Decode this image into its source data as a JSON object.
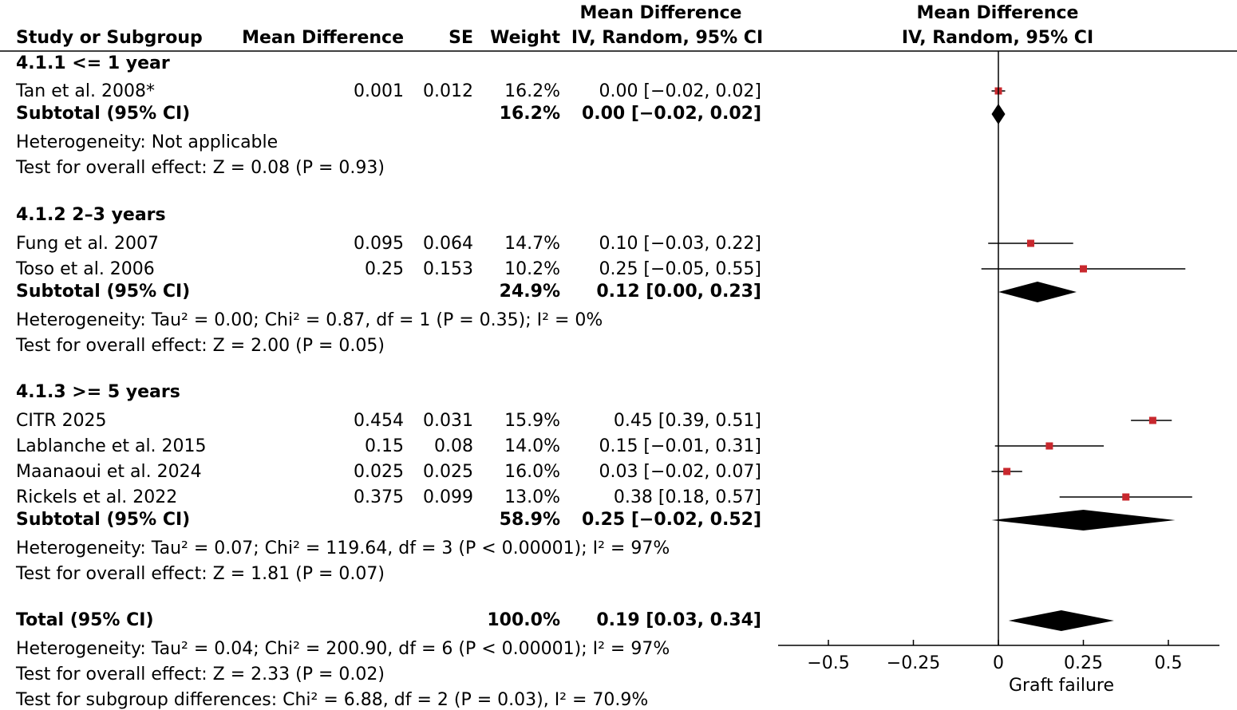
{
  "header": {
    "study": "Study or Subgroup",
    "md": "Mean Difference",
    "se": "SE",
    "weight": "Weight",
    "ci_title": "Mean Difference",
    "ci_sub": "IV, Random, 95% CI",
    "plot_title": "Mean Difference",
    "plot_sub": "IV, Random, 95% CI"
  },
  "groups": [
    {
      "title": "4.1.1 <= 1 year",
      "studies": [
        {
          "name": "Tan et al. 2008*",
          "md": "0.001",
          "se": "0.012",
          "weight": "16.2%",
          "ci": "0.00 [−0.02, 0.02]",
          "est": 0.0,
          "lo": -0.02,
          "hi": 0.02
        }
      ],
      "subtotal": {
        "label": "Subtotal (95% CI)",
        "weight": "16.2%",
        "ci": "0.00 [−0.02, 0.02]",
        "est": 0.0,
        "lo": -0.02,
        "hi": 0.02
      },
      "heterogeneity": "Heterogeneity: Not applicable",
      "overall": "Test for overall effect: Z = 0.08 (P = 0.93)"
    },
    {
      "title": "4.1.2 2–3 years",
      "studies": [
        {
          "name": "Fung et al. 2007",
          "md": "0.095",
          "se": "0.064",
          "weight": "14.7%",
          "ci": "0.10 [−0.03, 0.22]",
          "est": 0.095,
          "lo": -0.03,
          "hi": 0.22
        },
        {
          "name": "Toso et al. 2006",
          "md": "0.25",
          "se": "0.153",
          "weight": "10.2%",
          "ci": "0.25 [−0.05, 0.55]",
          "est": 0.25,
          "lo": -0.05,
          "hi": 0.55
        }
      ],
      "subtotal": {
        "label": "Subtotal (95% CI)",
        "weight": "24.9%",
        "ci": "0.12 [0.00, 0.23]",
        "est": 0.115,
        "lo": 0.0,
        "hi": 0.23
      },
      "heterogeneity": "Heterogeneity: Tau² = 0.00; Chi² = 0.87, df = 1 (P = 0.35); I² = 0%",
      "overall": "Test for overall effect: Z = 2.00 (P = 0.05)"
    },
    {
      "title": "4.1.3 >= 5 years",
      "studies": [
        {
          "name": "CITR 2025",
          "md": "0.454",
          "se": "0.031",
          "weight": "15.9%",
          "ci": "0.45 [0.39, 0.51]",
          "est": 0.454,
          "lo": 0.39,
          "hi": 0.51
        },
        {
          "name": "Lablanche et al. 2015",
          "md": "0.15",
          "se": "0.08",
          "weight": "14.0%",
          "ci": "0.15 [−0.01, 0.31]",
          "est": 0.15,
          "lo": -0.01,
          "hi": 0.31
        },
        {
          "name": "Maanaoui et al. 2024",
          "md": "0.025",
          "se": "0.025",
          "weight": "16.0%",
          "ci": "0.03 [−0.02, 0.07]",
          "est": 0.025,
          "lo": -0.02,
          "hi": 0.07
        },
        {
          "name": "Rickels et al. 2022",
          "md": "0.375",
          "se": "0.099",
          "weight": "13.0%",
          "ci": "0.38 [0.18, 0.57]",
          "est": 0.375,
          "lo": 0.18,
          "hi": 0.57
        }
      ],
      "subtotal": {
        "label": "Subtotal (95% CI)",
        "weight": "58.9%",
        "ci": "0.25 [−0.02, 0.52]",
        "est": 0.25,
        "lo": -0.02,
        "hi": 0.52
      },
      "heterogeneity": "Heterogeneity: Tau² = 0.07; Chi² = 119.64, df = 3 (P < 0.00001); I² = 97%",
      "overall": "Test for overall effect: Z = 1.81 (P = 0.07)"
    }
  ],
  "total": {
    "label": "Total (95% CI)",
    "weight": "100.0%",
    "ci": "0.19 [0.03, 0.34]",
    "est": 0.185,
    "lo": 0.03,
    "hi": 0.34,
    "heterogeneity": "Heterogeneity: Tau² = 0.04; Chi² = 200.90, df = 6 (P < 0.00001); I² = 97%",
    "overall": "Test for overall effect: Z = 2.33 (P = 0.02)",
    "subgroup": "Test for subgroup differences: Chi² = 6.88, df = 2 (P = 0.03), I² = 70.9%"
  },
  "chart_data": {
    "type": "forest",
    "xlabel": "Graft failure",
    "xlim": [
      -0.65,
      0.65
    ],
    "ticks": [
      -0.5,
      -0.25,
      0,
      0.25,
      0.5
    ],
    "tick_labels": [
      "−0.5",
      "−0.25",
      "0",
      "0.25",
      "0.5"
    ],
    "marker_color": "#c8282e",
    "diamond_color": "#000000"
  }
}
